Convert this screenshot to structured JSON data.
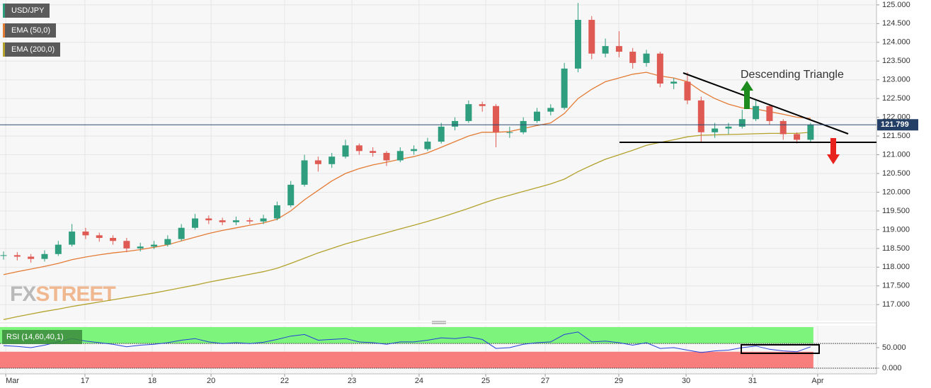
{
  "chart_data": {
    "type": "candlestick",
    "x": [
      0,
      1,
      2,
      3,
      4,
      5,
      6,
      7,
      8,
      9,
      10,
      11,
      12,
      13,
      14,
      15,
      16,
      17,
      18,
      19,
      20,
      21,
      22,
      23,
      24,
      25,
      26,
      27,
      28,
      29,
      30,
      31,
      32,
      33,
      34,
      35,
      36,
      37,
      38,
      39,
      40,
      41,
      42,
      43,
      44,
      45,
      46,
      47,
      48,
      49,
      50,
      51,
      52,
      53,
      54,
      55,
      56,
      57,
      58,
      59
    ],
    "xlim": [
      -0.26,
      63.82
    ],
    "xticks": [
      {
        "value": 0.16,
        "label": "Mar"
      },
      {
        "value": 5.95,
        "label": "17"
      },
      {
        "value": 10.87,
        "label": "18"
      },
      {
        "value": 15.17,
        "label": "20"
      },
      {
        "value": 20.55,
        "label": "22"
      },
      {
        "value": 25.47,
        "label": "23"
      },
      {
        "value": 30.38,
        "label": "24"
      },
      {
        "value": 35.25,
        "label": "25"
      },
      {
        "value": 39.6,
        "label": "27"
      },
      {
        "value": 44.98,
        "label": "29"
      },
      {
        "value": 49.9,
        "label": "30"
      },
      {
        "value": 54.76,
        "label": "31"
      },
      {
        "value": 59.52,
        "label": "Apr"
      }
    ],
    "ylim": [
      116.57,
      125.13
    ],
    "yticks": [
      {
        "value": 117,
        "label": "117.000"
      },
      {
        "value": 117.5,
        "label": "117.500"
      },
      {
        "value": 118,
        "label": "118.000"
      },
      {
        "value": 118.5,
        "label": "118.500"
      },
      {
        "value": 119,
        "label": "119.000"
      },
      {
        "value": 119.5,
        "label": "119.500"
      },
      {
        "value": 120,
        "label": "120.000"
      },
      {
        "value": 120.5,
        "label": "120.500"
      },
      {
        "value": 121,
        "label": "121.000"
      },
      {
        "value": 121.5,
        "label": "121.500"
      },
      {
        "value": 122,
        "label": "122.000"
      },
      {
        "value": 122.5,
        "label": "122.500"
      },
      {
        "value": 123,
        "label": "123.000"
      },
      {
        "value": 123.5,
        "label": "123.500"
      },
      {
        "value": 124,
        "label": "124.000"
      },
      {
        "value": 124.5,
        "label": "124.500"
      },
      {
        "value": 125,
        "label": "125.000"
      }
    ],
    "grid": true,
    "series": [
      {
        "name": "USD/JPY",
        "up_color": "#2e9e7e",
        "down_color": "#de5a52",
        "open": [
          118.3,
          118.32,
          118.28,
          118.22,
          118.35,
          118.6,
          118.95,
          118.85,
          118.78,
          118.7,
          118.5,
          118.55,
          118.6,
          118.75,
          119.05,
          119.3,
          119.25,
          119.2,
          119.25,
          119.22,
          119.3,
          119.65,
          120.2,
          120.85,
          120.75,
          120.95,
          121.25,
          121.1,
          121.05,
          120.85,
          121.1,
          121.15,
          121.35,
          121.75,
          121.9,
          122.35,
          122.3,
          121.6,
          121.6,
          121.9,
          122.15,
          122.25,
          123.3,
          124.6,
          123.7,
          123.9,
          123.75,
          123.45,
          123.7,
          122.9,
          122.95,
          122.45,
          121.6,
          121.7,
          121.75,
          121.95,
          122.3,
          121.9,
          121.55,
          121.4
        ],
        "high": [
          118.42,
          118.4,
          118.35,
          118.45,
          118.7,
          119.15,
          119.05,
          118.92,
          118.85,
          118.78,
          118.65,
          118.7,
          118.85,
          119.15,
          119.42,
          119.38,
          119.32,
          119.35,
          119.32,
          119.4,
          119.75,
          120.3,
          121.0,
          120.95,
          121.05,
          121.4,
          121.3,
          121.2,
          121.1,
          121.2,
          121.25,
          121.45,
          121.85,
          122.0,
          122.45,
          122.42,
          122.35,
          121.75,
          122.0,
          122.25,
          122.35,
          123.45,
          125.05,
          124.7,
          124.1,
          124.3,
          123.85,
          123.8,
          123.75,
          123.05,
          123.2,
          122.55,
          121.85,
          121.85,
          122.2,
          122.45,
          122.35,
          121.95,
          121.6,
          121.85
        ],
        "low": [
          118.2,
          118.18,
          118.12,
          118.15,
          118.3,
          118.55,
          118.75,
          118.68,
          118.6,
          118.4,
          118.42,
          118.48,
          118.55,
          118.7,
          119.0,
          119.15,
          119.12,
          119.12,
          119.15,
          119.15,
          119.25,
          119.6,
          120.15,
          120.55,
          120.65,
          120.9,
          121.0,
          120.95,
          120.7,
          120.8,
          121.0,
          121.1,
          121.3,
          121.65,
          121.85,
          122.15,
          121.2,
          121.45,
          121.55,
          121.85,
          122.05,
          122.2,
          123.2,
          123.55,
          123.6,
          123.6,
          123.3,
          123.35,
          122.8,
          122.75,
          122.35,
          121.35,
          121.45,
          121.55,
          121.7,
          121.9,
          121.8,
          121.4,
          121.3,
          121.35
        ],
        "close": [
          118.32,
          118.28,
          118.22,
          118.35,
          118.6,
          118.95,
          118.85,
          118.78,
          118.7,
          118.5,
          118.55,
          118.6,
          118.75,
          119.05,
          119.3,
          119.25,
          119.2,
          119.25,
          119.22,
          119.3,
          119.65,
          120.2,
          120.85,
          120.75,
          120.95,
          121.25,
          121.1,
          121.05,
          120.85,
          121.1,
          121.15,
          121.35,
          121.75,
          121.9,
          122.35,
          122.3,
          121.6,
          121.6,
          121.9,
          122.15,
          122.25,
          123.3,
          124.6,
          123.7,
          123.9,
          123.75,
          123.45,
          123.7,
          122.9,
          122.95,
          122.45,
          121.6,
          121.7,
          121.75,
          121.95,
          122.3,
          121.9,
          121.55,
          121.4,
          121.8
        ]
      },
      {
        "name": "EMA (50,0)",
        "color": "#e47b35",
        "values": [
          117.8,
          117.88,
          117.95,
          118.02,
          118.1,
          118.2,
          118.27,
          118.33,
          118.38,
          118.42,
          118.47,
          118.53,
          118.6,
          118.7,
          118.8,
          118.9,
          118.98,
          119.05,
          119.12,
          119.18,
          119.28,
          119.5,
          119.8,
          120.05,
          120.3,
          120.5,
          120.63,
          120.73,
          120.8,
          120.88,
          120.95,
          121.05,
          121.2,
          121.35,
          121.5,
          121.6,
          121.6,
          121.62,
          121.7,
          121.78,
          121.85,
          122.1,
          122.5,
          122.75,
          122.95,
          123.05,
          123.15,
          123.2,
          123.1,
          123.05,
          122.95,
          122.7,
          122.5,
          122.35,
          122.25,
          122.22,
          122.15,
          122.08,
          122.0,
          121.97
        ]
      },
      {
        "name": "EMA (200,0)",
        "color": "#b3a22c",
        "values": [
          116.6,
          116.68,
          116.75,
          116.82,
          116.88,
          116.95,
          117.01,
          117.07,
          117.13,
          117.19,
          117.25,
          117.31,
          117.38,
          117.45,
          117.52,
          117.6,
          117.67,
          117.74,
          117.81,
          117.88,
          117.97,
          118.1,
          118.24,
          118.38,
          118.5,
          118.62,
          118.72,
          118.82,
          118.92,
          119.02,
          119.12,
          119.22,
          119.33,
          119.45,
          119.57,
          119.7,
          119.82,
          119.92,
          120.02,
          120.12,
          120.22,
          120.35,
          120.55,
          120.72,
          120.88,
          121.0,
          121.12,
          121.25,
          121.33,
          121.4,
          121.48,
          121.52,
          121.53,
          121.54,
          121.55,
          121.56,
          121.57,
          121.57,
          121.57,
          121.6
        ]
      }
    ],
    "last_price": 121.799,
    "annotation": "Descending Triangle",
    "watermark": [
      "FX",
      "STREET"
    ],
    "rsi": {
      "name": "RSI (14,60,40,1)",
      "color": "#2540d8",
      "values": [
        55,
        53,
        50,
        56,
        64,
        72,
        66,
        62,
        58,
        52,
        56,
        58,
        62,
        68,
        72,
        64,
        60,
        62,
        60,
        63,
        70,
        78,
        82,
        68,
        70,
        72,
        64,
        62,
        58,
        64,
        64,
        68,
        74,
        72,
        76,
        70,
        48,
        50,
        58,
        62,
        64,
        82,
        88,
        64,
        66,
        62,
        56,
        62,
        48,
        50,
        44,
        38,
        42,
        44,
        50,
        54,
        46,
        42,
        40,
        52
      ],
      "ylim": [
        -13.8,
        103.4
      ],
      "yticks": [
        {
          "value": 0,
          "label": "0.000"
        },
        {
          "value": 50,
          "label": "50.000"
        }
      ],
      "bands": [
        {
          "range": [
            60,
            100
          ],
          "color": "#7df57d"
        },
        {
          "range": [
            0,
            40
          ],
          "color": "#f87d7d"
        }
      ]
    }
  }
}
